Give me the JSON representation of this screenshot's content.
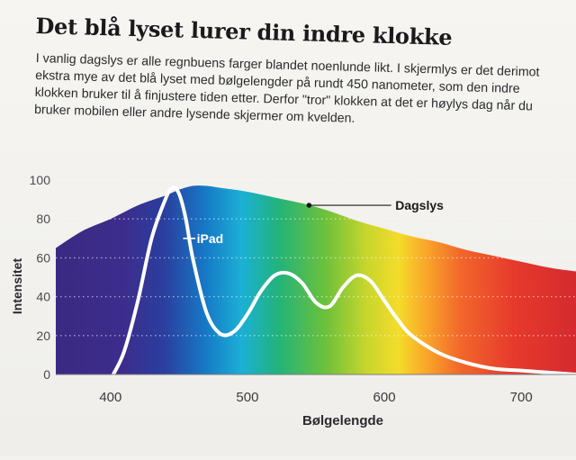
{
  "article": {
    "headline": "Det blå lyset lurer din indre klokke",
    "ingress": "I vanlig dagslys er alle regnbuens farger blandet noenlunde likt. I skjermlys er det derimot ekstra mye av det blå lyset med bølgelengder på rundt 450 nanometer, som den indre klokken bruker til å finjustere tiden etter. Derfor \"tror\" klokken at det er høylys dag når du bruker mobilen eller andre lysende skjermer om kvelden."
  },
  "chart_data": {
    "type": "area",
    "xlabel": "Bølgelengde",
    "ylabel": "Intensitet",
    "xlim": [
      360,
      740
    ],
    "ylim": [
      0,
      100
    ],
    "xticks": [
      400,
      500,
      600,
      700
    ],
    "yticks": [
      0,
      20,
      40,
      60,
      80,
      100
    ],
    "grid": "dotted horizontal",
    "series": [
      {
        "name": "Dagslys",
        "style": "filled spectrum area",
        "x": [
          360,
          380,
          400,
          420,
          440,
          450,
          460,
          470,
          480,
          500,
          520,
          540,
          560,
          580,
          600,
          620,
          640,
          660,
          680,
          700,
          720,
          740
        ],
        "values": [
          65,
          74,
          80,
          87,
          92,
          95,
          97,
          97,
          96,
          94,
          91,
          88,
          84,
          79,
          75,
          71,
          68,
          64,
          61,
          58,
          55,
          53
        ]
      },
      {
        "name": "iPad",
        "style": "white line",
        "x": [
          402,
          410,
          420,
          430,
          440,
          445,
          450,
          455,
          460,
          470,
          480,
          490,
          500,
          510,
          520,
          530,
          540,
          550,
          560,
          570,
          580,
          590,
          600,
          610,
          620,
          640,
          660,
          680,
          700,
          720,
          740
        ],
        "values": [
          0,
          12,
          38,
          70,
          90,
          96,
          93,
          80,
          60,
          32,
          21,
          22,
          31,
          43,
          51,
          52,
          47,
          37,
          35,
          45,
          51,
          48,
          38,
          28,
          20,
          11,
          6,
          3,
          2,
          1,
          0
        ]
      }
    ]
  }
}
